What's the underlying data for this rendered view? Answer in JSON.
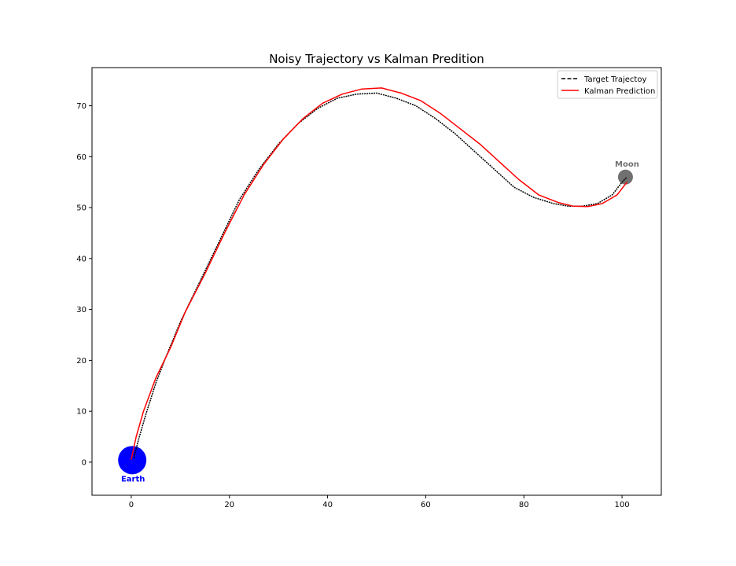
{
  "chart_data": {
    "type": "line",
    "title": "Noisy Trajectory vs Kalman Predition",
    "xlabel": "",
    "ylabel": "",
    "xlim": [
      -8,
      108
    ],
    "ylim": [
      -6.5,
      77.5
    ],
    "x_ticks": [
      0,
      20,
      40,
      60,
      80,
      100
    ],
    "y_ticks": [
      0,
      10,
      20,
      30,
      40,
      50,
      60,
      70
    ],
    "grid": false,
    "legend": "top-right",
    "series": [
      {
        "name": "Target Trajectoy",
        "style": "dashed",
        "color": "#000000",
        "points": [
          [
            0.5,
            0.8
          ],
          [
            1.5,
            4.5
          ],
          [
            3,
            9.5
          ],
          [
            5,
            15.5
          ],
          [
            7,
            20.5
          ],
          [
            10,
            27.5
          ],
          [
            14,
            35.5
          ],
          [
            18,
            43.5
          ],
          [
            22,
            51.5
          ],
          [
            26,
            57.5
          ],
          [
            30,
            62.5
          ],
          [
            34,
            66.5
          ],
          [
            38,
            69.5
          ],
          [
            42,
            71.5
          ],
          [
            46,
            72.3
          ],
          [
            50,
            72.5
          ],
          [
            54,
            71.5
          ],
          [
            58,
            70
          ],
          [
            62,
            67.5
          ],
          [
            66,
            64.5
          ],
          [
            70,
            61
          ],
          [
            74,
            57.5
          ],
          [
            78,
            54
          ],
          [
            82,
            52
          ],
          [
            86,
            50.8
          ],
          [
            89,
            50.3
          ],
          [
            92,
            50.3
          ],
          [
            95,
            50.8
          ],
          [
            98,
            52.5
          ],
          [
            100,
            55
          ],
          [
            101,
            56
          ]
        ]
      },
      {
        "name": "Kalman Prediction",
        "style": "solid",
        "color": "#ff0000",
        "points": [
          [
            0,
            0.5
          ],
          [
            1,
            5
          ],
          [
            2.5,
            10
          ],
          [
            5,
            16.5
          ],
          [
            8,
            22.5
          ],
          [
            11,
            29.5
          ],
          [
            15,
            37
          ],
          [
            19,
            45
          ],
          [
            23,
            52.5
          ],
          [
            27,
            58.5
          ],
          [
            31,
            63.5
          ],
          [
            35,
            67.5
          ],
          [
            39,
            70.5
          ],
          [
            43,
            72.3
          ],
          [
            47,
            73.3
          ],
          [
            51,
            73.5
          ],
          [
            55,
            72.5
          ],
          [
            59,
            71
          ],
          [
            63,
            68.5
          ],
          [
            67,
            65.5
          ],
          [
            71,
            62.5
          ],
          [
            75,
            59
          ],
          [
            79,
            55.5
          ],
          [
            83,
            52.5
          ],
          [
            87,
            51
          ],
          [
            90,
            50.3
          ],
          [
            93,
            50.2
          ],
          [
            96,
            50.8
          ],
          [
            99,
            52.5
          ],
          [
            101,
            55
          ]
        ]
      }
    ],
    "bodies": [
      {
        "label": "Earth",
        "x": 0.2,
        "y": 0.4,
        "color": "#0000ff",
        "label_color": "#0000ff"
      },
      {
        "label": "Moon",
        "x": 100.7,
        "y": 56,
        "color": "#707070",
        "label_color": "#707070"
      }
    ]
  }
}
